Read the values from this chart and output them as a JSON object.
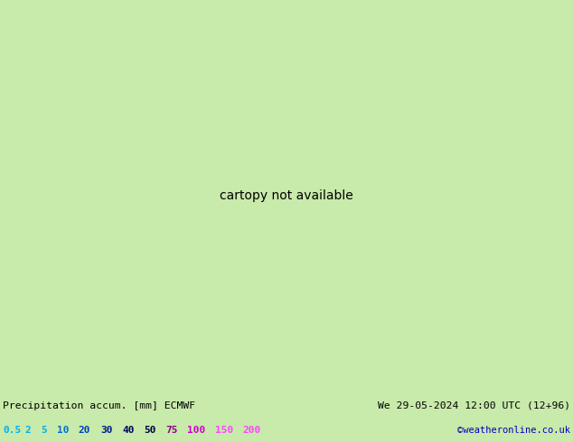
{
  "title_left": "Precipitation accum. [mm] ECMWF",
  "title_right": "We 29-05-2024 12:00 UTC (12+96)",
  "credit": "©weatheronline.co.uk",
  "legend_values": [
    "0.5",
    "2",
    "5",
    "10",
    "20",
    "30",
    "40",
    "50",
    "75",
    "100",
    "150",
    "200"
  ],
  "legend_text_colors": [
    "#00b0f0",
    "#00b0f0",
    "#00b0f0",
    "#0070d0",
    "#0040c0",
    "#001890",
    "#000060",
    "#000040",
    "#880088",
    "#cc00cc",
    "#ff44ff",
    "#ff44ff"
  ],
  "land_color": "#c8eaaa",
  "sea_color": "#d0eef8",
  "border_color": "#888888",
  "coast_color": "#888888",
  "bottom_bg_color": "#c8eaaa",
  "text_color": "#000000",
  "credit_color": "#0000bb",
  "prec_bounds": [
    0.5,
    2,
    5,
    10,
    20,
    30,
    40,
    50,
    75,
    100,
    150,
    200
  ],
  "prec_colors": [
    "#c0e8ff",
    "#90ccff",
    "#60aaee",
    "#3080e0",
    "#1055c0",
    "#0838a0",
    "#052080",
    "#030e58",
    "#6008a0",
    "#b010b8",
    "#f040f0",
    "#ffaaff"
  ],
  "map_extent": [
    22,
    62,
    22,
    46
  ],
  "fig_width": 6.34,
  "fig_height": 4.9,
  "dpi": 100
}
